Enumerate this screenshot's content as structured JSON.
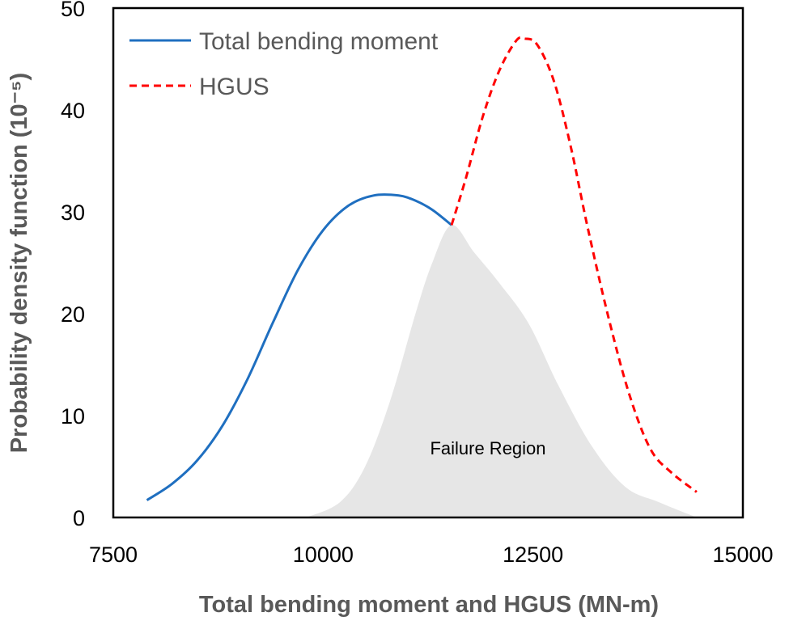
{
  "chart_data": {
    "type": "line",
    "xlabel": "Total bending moment and HGUS (MN-m)",
    "ylabel": "Probability density function (10⁻⁵)",
    "xlim": [
      7500,
      15000
    ],
    "ylim": [
      0,
      50
    ],
    "xticks": [
      7500,
      10000,
      12500,
      15000
    ],
    "yticks": [
      0,
      10,
      20,
      30,
      40,
      50
    ],
    "grid": false,
    "legend_position": "top-left",
    "series": [
      {
        "name": "Total bending moment",
        "style": "solid",
        "color": "#1f6fc0",
        "x": [
          7900,
          8200,
          8500,
          8800,
          9100,
          9400,
          9700,
          10000,
          10300,
          10600,
          10900,
          11100,
          11300,
          11530
        ],
        "y": [
          1.7,
          3.3,
          5.6,
          9.0,
          13.6,
          19.1,
          24.3,
          28.2,
          30.6,
          31.6,
          31.6,
          31.1,
          30.2,
          28.7
        ]
      },
      {
        "name": "HGUS",
        "style": "dashed",
        "color": "#ff0000",
        "x": [
          11530,
          11700,
          11900,
          12100,
          12300,
          12400,
          12550,
          12750,
          12950,
          13150,
          13400,
          13650,
          13900,
          14150,
          14450
        ],
        "y": [
          28.7,
          33.3,
          39.3,
          43.9,
          46.8,
          47.0,
          46.4,
          42.8,
          36.4,
          28.5,
          19.6,
          12.0,
          6.7,
          4.4,
          2.5
        ]
      }
    ],
    "shaded_region": {
      "label": "Failure Region",
      "color": "#e6e6e6",
      "x": [
        9800,
        10200,
        10500,
        10800,
        11100,
        11300,
        11530,
        11800,
        12100,
        12450,
        12800,
        13200,
        13600,
        14000,
        14450
      ],
      "y": [
        0,
        1.5,
        5.0,
        11.5,
        20.0,
        25.0,
        28.7,
        26.0,
        23.0,
        19.0,
        13.0,
        7.0,
        3.0,
        1.5,
        0
      ]
    }
  }
}
